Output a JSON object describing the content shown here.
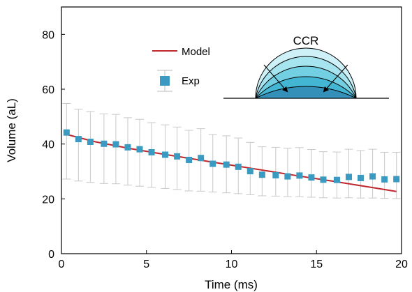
{
  "chart_data": {
    "type": "scatter",
    "xlabel": "Time (ms)",
    "ylabel": "Volume (aL)",
    "xlim": [
      0,
      20
    ],
    "ylim": [
      0,
      90
    ],
    "x_ticks": [
      0,
      5,
      10,
      15,
      20
    ],
    "y_ticks": [
      0,
      20,
      40,
      60,
      80
    ],
    "grid": false,
    "legend_position": "upper-middle",
    "series": [
      {
        "name": "Model",
        "kind": "line",
        "color": "#c0272d",
        "x": [
          0.3,
          2,
          4,
          6,
          8,
          10,
          12,
          14,
          16,
          18,
          19.7
        ],
        "y": [
          43.5,
          40.8,
          38.4,
          36.3,
          34.3,
          32.3,
          30.3,
          28.3,
          26.4,
          24.4,
          22.7
        ]
      },
      {
        "name": "Exp",
        "kind": "scatter_errorbar",
        "color": "#3a9ac1",
        "errorbar_color": "#c8c8c8",
        "x": [
          0.3,
          1.0,
          1.7,
          2.5,
          3.2,
          3.9,
          4.6,
          5.3,
          6.1,
          6.8,
          7.5,
          8.2,
          8.9,
          9.7,
          10.4,
          11.1,
          11.8,
          12.6,
          13.3,
          14.0,
          14.7,
          15.4,
          16.2,
          16.9,
          17.6,
          18.3,
          19.0,
          19.7
        ],
        "y": [
          44.2,
          41.8,
          40.8,
          40.1,
          39.9,
          38.8,
          38.1,
          37.0,
          36.1,
          35.5,
          34.2,
          34.9,
          32.8,
          32.5,
          31.7,
          30.1,
          28.8,
          28.6,
          28.2,
          28.5,
          27.8,
          27.0,
          26.9,
          28.0,
          27.6,
          28.2,
          27.1,
          27.2
        ],
        "err_upper": [
          54.8,
          52.7,
          51.8,
          51.0,
          50.8,
          49.6,
          49.0,
          47.8,
          47.0,
          46.2,
          45.0,
          45.6,
          43.5,
          43.0,
          42.2,
          40.6,
          39.0,
          38.8,
          38.5,
          38.7,
          38.0,
          37.2,
          37.1,
          38.1,
          37.6,
          38.1,
          37.0,
          37.0
        ],
        "err_lower": [
          27.2,
          26.5,
          26.0,
          25.6,
          25.5,
          25.0,
          24.6,
          24.2,
          23.8,
          23.4,
          22.9,
          22.8,
          22.5,
          22.2,
          21.9,
          21.5,
          21.1,
          21.0,
          20.8,
          20.8,
          20.6,
          20.4,
          20.3,
          20.4,
          20.3,
          20.3,
          20.2,
          20.1
        ]
      }
    ],
    "annotation": {
      "title": "CCR",
      "fill_colors": [
        "#cdf1f7",
        "#a6e4ef",
        "#73d0e3",
        "#42b6d3",
        "#3490b9"
      ]
    }
  }
}
